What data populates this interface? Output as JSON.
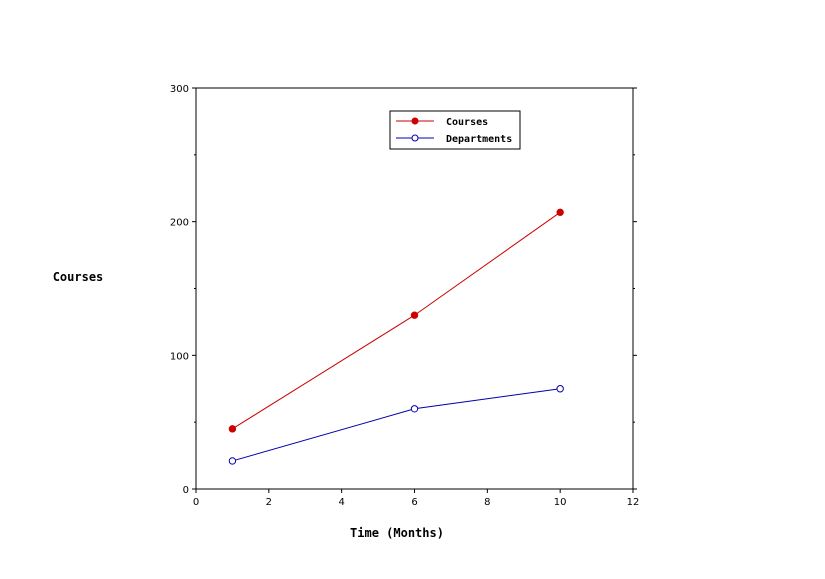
{
  "chart_data": {
    "type": "line",
    "title": "",
    "xlabel": "Time (Months)",
    "ylabel": "Courses",
    "xlim": [
      0,
      12
    ],
    "ylim": [
      0,
      300
    ],
    "xticks": [
      0,
      2,
      4,
      6,
      8,
      10,
      12
    ],
    "yticks": [
      0,
      100,
      200,
      300
    ],
    "grid": false,
    "legend_position": "top-center",
    "series": [
      {
        "name": "Courses",
        "color": "#cc0000",
        "marker": "filled-circle",
        "x": [
          1,
          6,
          10
        ],
        "y": [
          45,
          130,
          207
        ]
      },
      {
        "name": "Departments",
        "color": "#0000aa",
        "marker": "open-circle",
        "x": [
          1,
          6,
          10
        ],
        "y": [
          21,
          60,
          75
        ]
      }
    ]
  }
}
